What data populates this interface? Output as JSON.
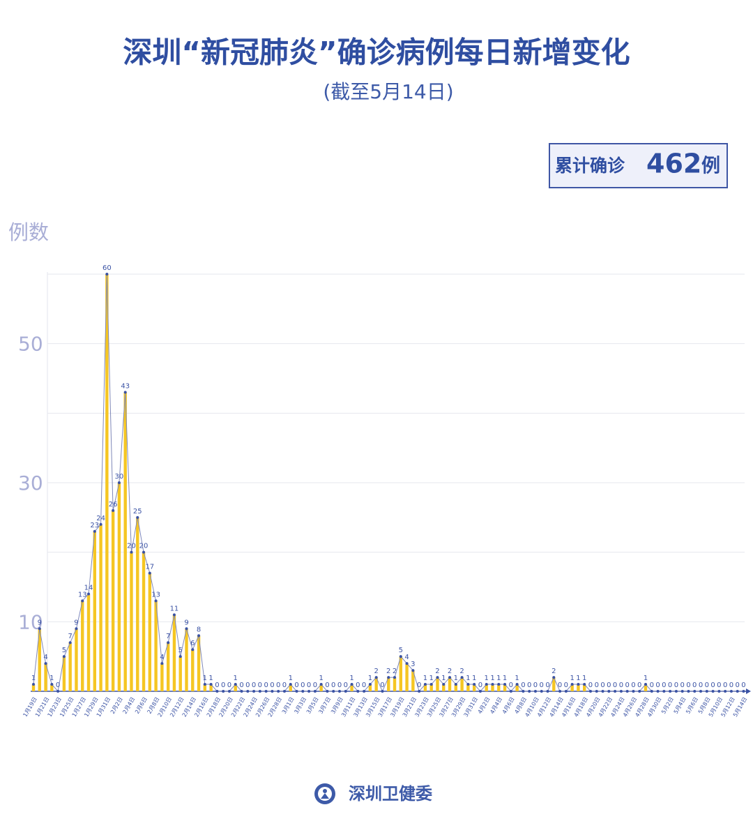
{
  "header": {
    "title": "深圳“新冠肺炎”确诊病例每日新增变化",
    "subtitle": "(截至5月14日)"
  },
  "summary": {
    "prefix": "累计确诊",
    "total": 462,
    "suffix": "例"
  },
  "footer": {
    "source": "深圳卫健委"
  },
  "chart_data": {
    "type": "bar",
    "y_label": "例数",
    "color": "#f5c623",
    "line_color": "#7f88b8",
    "marker_color": "#3a52a4",
    "ylim": [
      0,
      60
    ],
    "yticks": [
      10,
      30,
      50
    ],
    "y_minor_ticks": [
      20,
      40,
      60
    ],
    "grid": true,
    "categories": [
      "1月19日",
      null,
      "1月21日",
      null,
      "1月23日",
      null,
      "1月25日",
      null,
      "1月27日",
      null,
      "1月29日",
      null,
      "1月31日",
      null,
      "2月2日",
      null,
      "2月4日",
      null,
      "2月6日",
      null,
      "2月8日",
      null,
      "2月10日",
      null,
      "2月12日",
      null,
      "2月14日",
      null,
      "2月16日",
      null,
      "2月18日",
      null,
      "2月20日",
      null,
      "2月22日",
      null,
      "2月24日",
      null,
      "2月26日",
      null,
      "2月28日",
      null,
      "3月1日",
      null,
      "3月3日",
      null,
      "3月5日",
      null,
      "3月7日",
      null,
      "3月9日",
      null,
      "3月11日",
      null,
      "3月13日",
      null,
      "3月15日",
      null,
      "3月17日",
      null,
      "3月19日",
      null,
      "3月21日",
      null,
      "3月23日",
      null,
      "3月25日",
      null,
      "3月27日",
      null,
      "3月29日",
      null,
      "3月31日",
      null,
      "4月2日",
      null,
      "4月4日",
      null,
      "4月6日",
      null,
      "4月8日",
      null,
      "4月10日",
      null,
      "4月12日",
      null,
      "4月14日",
      null,
      "4月16日",
      null,
      "4月18日",
      null,
      "4月20日",
      null,
      "4月22日",
      null,
      "4月24日",
      null,
      "4月26日",
      null,
      "4月28日",
      null,
      "4月30日",
      null,
      "5月2日",
      null,
      "5月4日",
      null,
      "5月6日",
      null,
      "5月8日",
      null,
      "5月10日",
      null,
      "5月12日",
      null,
      "5月14日"
    ],
    "values": [
      1,
      9,
      4,
      1,
      0,
      5,
      7,
      9,
      13,
      14,
      23,
      24,
      60,
      26,
      30,
      43,
      20,
      25,
      20,
      17,
      13,
      4,
      7,
      11,
      5,
      9,
      6,
      8,
      1,
      1,
      0,
      0,
      0,
      1,
      0,
      0,
      0,
      0,
      0,
      0,
      0,
      0,
      1,
      0,
      0,
      0,
      0,
      1,
      0,
      0,
      0,
      0,
      1,
      0,
      0,
      1,
      2,
      0,
      2,
      2,
      5,
      4,
      3,
      0,
      1,
      1,
      2,
      1,
      2,
      1,
      2,
      1,
      1,
      0,
      1,
      1,
      1,
      1,
      0,
      1,
      0,
      0,
      0,
      0,
      0,
      2,
      0,
      0,
      1,
      1,
      1,
      0,
      0,
      0,
      0,
      0,
      0,
      0,
      0,
      0,
      1,
      0,
      0,
      0,
      0,
      0,
      0,
      0,
      0,
      0,
      0,
      0,
      0,
      0,
      0,
      0,
      0
    ]
  }
}
